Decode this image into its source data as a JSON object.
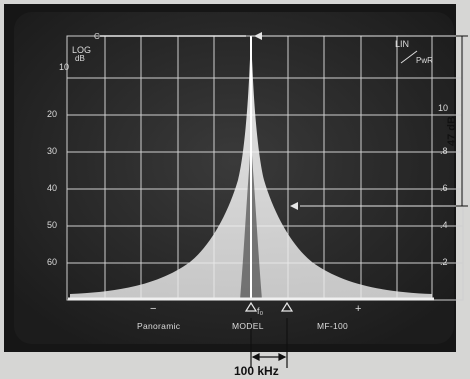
{
  "screen": {
    "top_left_small": "C",
    "log_label": "LOG",
    "db_label": "dB",
    "left_scale": [
      "10",
      "20",
      "30",
      "40",
      "50",
      "60"
    ],
    "lin_label": "LIN",
    "pwr_label": "PwR",
    "right_scale": [
      "10",
      ".8",
      ".6",
      ".4",
      ".2"
    ],
    "marker_minus": "−",
    "marker_center": "f₀",
    "marker_plus": "+",
    "bottom_left": "Panoramic",
    "bottom_center": "MODEL",
    "bottom_right": "MF-100"
  },
  "annotations": {
    "right_span": "47 dB",
    "bottom_span": "100 kHz"
  },
  "colors": {
    "bezel": "#1a1a1a",
    "screen": "#2a2a2a",
    "grid": "#cfcfcf",
    "trace": "#f2f2f2",
    "paper": "#d6d6d4"
  }
}
